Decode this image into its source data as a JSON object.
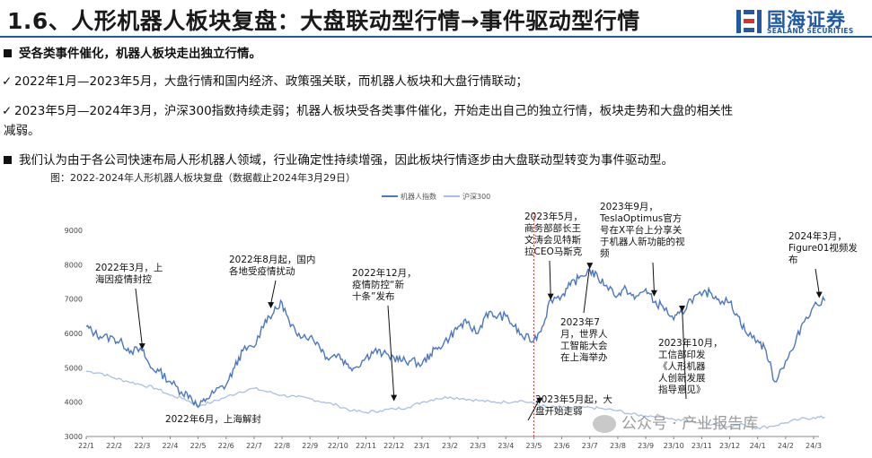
{
  "header": {
    "title": "1.6、人形机器人板块复盘：大盘联动型行情→事件驱动型行情",
    "logo_cn": "国海证券",
    "logo_en": "SEALAND SECURITIES"
  },
  "text": {
    "bullet1": "受各类事件催化，机器人板块走出独立行情。",
    "check1": "2022年1月—2023年5月，大盘行情和国内经济、政策强关联，而机器人板块和大盘行情联动；",
    "check2_a": "2023年5月—2024年3月，沪深300指数持续走弱；机器人板块受各类事件催化，开始走出自己的独立行情，板块走势和大盘的相关性",
    "check2_b": "减弱。",
    "bullet2": "我们认为由于各公司快速布局人形机器人领域，行业确定性持续增强，因此板块行情逐步由大盘联动型转变为事件驱动型。",
    "caption": "图：2022-2024年人形机器人板块复盘（数据截止2024年3月29日）"
  },
  "watermark": "公众号 · 产业报告库",
  "colors": {
    "robot": "#4a78c2",
    "hs300": "#a9c0e4",
    "accent": "#1e5aa8",
    "divider": "#d9342b"
  },
  "chart_data": {
    "type": "line",
    "x_ticks": [
      "22/1",
      "22/2",
      "22/3",
      "22/4",
      "22/5",
      "22/6",
      "22/7",
      "22/8",
      "22/9",
      "22/10",
      "22/11",
      "22/12",
      "23/1",
      "23/2",
      "23/3",
      "23/4",
      "23/5",
      "23/6",
      "23/7",
      "23/8",
      "23/9",
      "23/10",
      "23/11",
      "23/12",
      "24/1",
      "24/2",
      "24/3"
    ],
    "yticks": [
      3000,
      4000,
      5000,
      6000,
      7000,
      8000,
      9000
    ],
    "ylim": [
      3000,
      9000
    ],
    "grid": false,
    "legend_position": "top",
    "series": [
      {
        "name": "机器人指数",
        "values": [
          [
            0,
            6200
          ],
          [
            0.3,
            6000
          ],
          [
            0.6,
            5900
          ],
          [
            1,
            5850
          ],
          [
            1.3,
            5700
          ],
          [
            1.6,
            5500
          ],
          [
            2,
            5500
          ],
          [
            2.3,
            5000
          ],
          [
            2.6,
            4900
          ],
          [
            3,
            4600
          ],
          [
            3.4,
            4300
          ],
          [
            3.7,
            4200
          ],
          [
            4,
            3850
          ],
          [
            4.3,
            4100
          ],
          [
            4.6,
            4300
          ],
          [
            5,
            4500
          ],
          [
            5.3,
            5000
          ],
          [
            5.6,
            5500
          ],
          [
            6,
            5600
          ],
          [
            6.4,
            6400
          ],
          [
            6.7,
            6600
          ],
          [
            7,
            6900
          ],
          [
            7.3,
            6200
          ],
          [
            7.6,
            6000
          ],
          [
            8,
            5900
          ],
          [
            8.3,
            5700
          ],
          [
            8.6,
            5300
          ],
          [
            9,
            5400
          ],
          [
            9.3,
            5100
          ],
          [
            9.6,
            5000
          ],
          [
            10,
            5300
          ],
          [
            10.3,
            5500
          ],
          [
            10.6,
            5400
          ],
          [
            11,
            5300
          ],
          [
            11.3,
            5200
          ],
          [
            11.6,
            5200
          ],
          [
            12,
            5100
          ],
          [
            12.3,
            5400
          ],
          [
            12.6,
            5600
          ],
          [
            13,
            5900
          ],
          [
            13.3,
            6200
          ],
          [
            13.6,
            6300
          ],
          [
            14,
            6000
          ],
          [
            14.3,
            6600
          ],
          [
            14.6,
            6500
          ],
          [
            15,
            6500
          ],
          [
            15.3,
            6200
          ],
          [
            15.6,
            5900
          ],
          [
            16,
            5800
          ],
          [
            16.3,
            6200
          ],
          [
            16.6,
            7000
          ],
          [
            17,
            7100
          ],
          [
            17.3,
            7400
          ],
          [
            17.6,
            7600
          ],
          [
            18,
            7850
          ],
          [
            18.3,
            7600
          ],
          [
            18.6,
            7400
          ],
          [
            19,
            7100
          ],
          [
            19.3,
            7300
          ],
          [
            19.6,
            7000
          ],
          [
            20,
            7300
          ],
          [
            20.3,
            6900
          ],
          [
            20.6,
            6800
          ],
          [
            21,
            6400
          ],
          [
            21.3,
            6600
          ],
          [
            21.6,
            7000
          ],
          [
            22,
            7100
          ],
          [
            22.3,
            7200
          ],
          [
            22.6,
            7000
          ],
          [
            23,
            6900
          ],
          [
            23.3,
            6500
          ],
          [
            23.6,
            6000
          ],
          [
            24,
            5800
          ],
          [
            24.3,
            5500
          ],
          [
            24.6,
            4600
          ],
          [
            25,
            5200
          ],
          [
            25.3,
            5600
          ],
          [
            25.6,
            6300
          ],
          [
            26,
            6800
          ],
          [
            26.4,
            6950
          ]
        ]
      },
      {
        "name": "沪深300",
        "values": [
          [
            0,
            4900
          ],
          [
            0.5,
            4850
          ],
          [
            1,
            4700
          ],
          [
            1.5,
            4600
          ],
          [
            2,
            4500
          ],
          [
            2.5,
            4400
          ],
          [
            3,
            4200
          ],
          [
            3.5,
            4100
          ],
          [
            4,
            3900
          ],
          [
            4.5,
            4000
          ],
          [
            5,
            4150
          ],
          [
            5.5,
            4300
          ],
          [
            6,
            4400
          ],
          [
            6.5,
            4300
          ],
          [
            7,
            4200
          ],
          [
            7.5,
            4150
          ],
          [
            8,
            4100
          ],
          [
            8.5,
            4000
          ],
          [
            9,
            3900
          ],
          [
            9.5,
            3750
          ],
          [
            10,
            3700
          ],
          [
            10.5,
            3750
          ],
          [
            11,
            3800
          ],
          [
            11.5,
            3850
          ],
          [
            12,
            4000
          ],
          [
            12.5,
            4100
          ],
          [
            13,
            4150
          ],
          [
            13.5,
            4100
          ],
          [
            14,
            4050
          ],
          [
            14.5,
            4000
          ],
          [
            15,
            4000
          ],
          [
            15.5,
            4050
          ],
          [
            16,
            3950
          ],
          [
            16.5,
            3850
          ],
          [
            17,
            3850
          ],
          [
            17.5,
            3800
          ],
          [
            18,
            3850
          ],
          [
            18.5,
            3800
          ],
          [
            19,
            3750
          ],
          [
            19.5,
            3650
          ],
          [
            20,
            3600
          ],
          [
            20.5,
            3600
          ],
          [
            21,
            3500
          ],
          [
            21.5,
            3450
          ],
          [
            22,
            3400
          ],
          [
            22.5,
            3350
          ],
          [
            23,
            3300
          ],
          [
            23.5,
            3350
          ],
          [
            24,
            3250
          ],
          [
            24.5,
            3300
          ],
          [
            25,
            3400
          ],
          [
            25.5,
            3500
          ],
          [
            26,
            3550
          ],
          [
            26.4,
            3560
          ]
        ]
      }
    ],
    "divider_x": 16,
    "annotations": [
      {
        "lines": [
          "2022年3月，上",
          "海因疫情封控"
        ],
        "x": 2,
        "y": 5500
      },
      {
        "lines": [
          "2022年6月，上海解封"
        ],
        "x": 5,
        "y": 4050
      },
      {
        "lines": [
          "2022年8月起，国内",
          "各地受疫情扰动"
        ],
        "x": 6.6,
        "y": 6700
      },
      {
        "lines": [
          "2022年12月，",
          "疫情防控“新",
          "十条”发布"
        ],
        "x": 11,
        "y": 4000
      },
      {
        "lines": [
          "2023年5月，",
          "商务部部长王",
          "文涛会见特斯",
          "拉CEO马斯克"
        ],
        "x": 16.6,
        "y": 6950
      },
      {
        "lines": [
          "2023年5月起，大",
          "盘开始走弱"
        ],
        "x": 16.2,
        "y": 3920
      },
      {
        "lines": [
          "2023年7",
          "月，世界人",
          "工智能大会",
          "在上海举办"
        ],
        "x": 18,
        "y": 7850
      },
      {
        "lines": [
          "2023年9月，",
          "TeslaOptimus官方",
          "号在X平台上分享关",
          "于机器人新功能的视",
          "频"
        ],
        "x": 20.3,
        "y": 7050
      },
      {
        "lines": [
          "2023年10月，",
          "工信部印发",
          "《人形机器",
          "人创新发展",
          "指导意见》"
        ],
        "x": 21.3,
        "y": 6600
      },
      {
        "lines": [
          "2024年3月，",
          "Figure01视频发",
          "布"
        ],
        "x": 26.2,
        "y": 7000
      }
    ]
  }
}
